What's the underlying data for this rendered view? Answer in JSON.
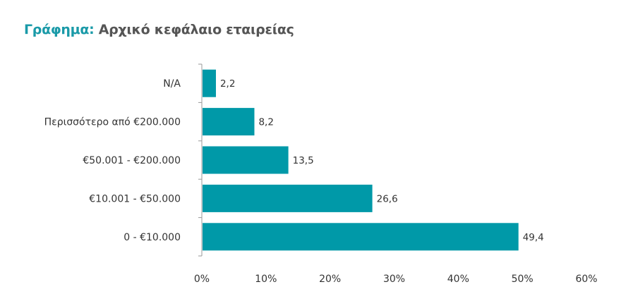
{
  "chart_data": {
    "type": "bar",
    "orientation": "horizontal",
    "title_prefix": "Γράφημα:",
    "title": "Αρχικό κεφάλαιο εταιρείας",
    "categories": [
      "N/A",
      "Περισσότερο από €200.000",
      "€50.001 - €200.000",
      "€10.001 - €50.000",
      "0 - €10.000"
    ],
    "values": [
      2.2,
      8.2,
      13.5,
      26.6,
      49.4
    ],
    "value_labels": [
      "2,2",
      "8,2",
      "13,5",
      "26,6",
      "49,4"
    ],
    "xlim": [
      0,
      60
    ],
    "xticks": [
      "0%",
      "10%",
      "20%",
      "30%",
      "40%",
      "50%",
      "60%"
    ],
    "grid": false,
    "legend": "none",
    "colors": {
      "bar": "#0099a8",
      "accent": "#1a9aa8",
      "title": "#555555"
    }
  }
}
